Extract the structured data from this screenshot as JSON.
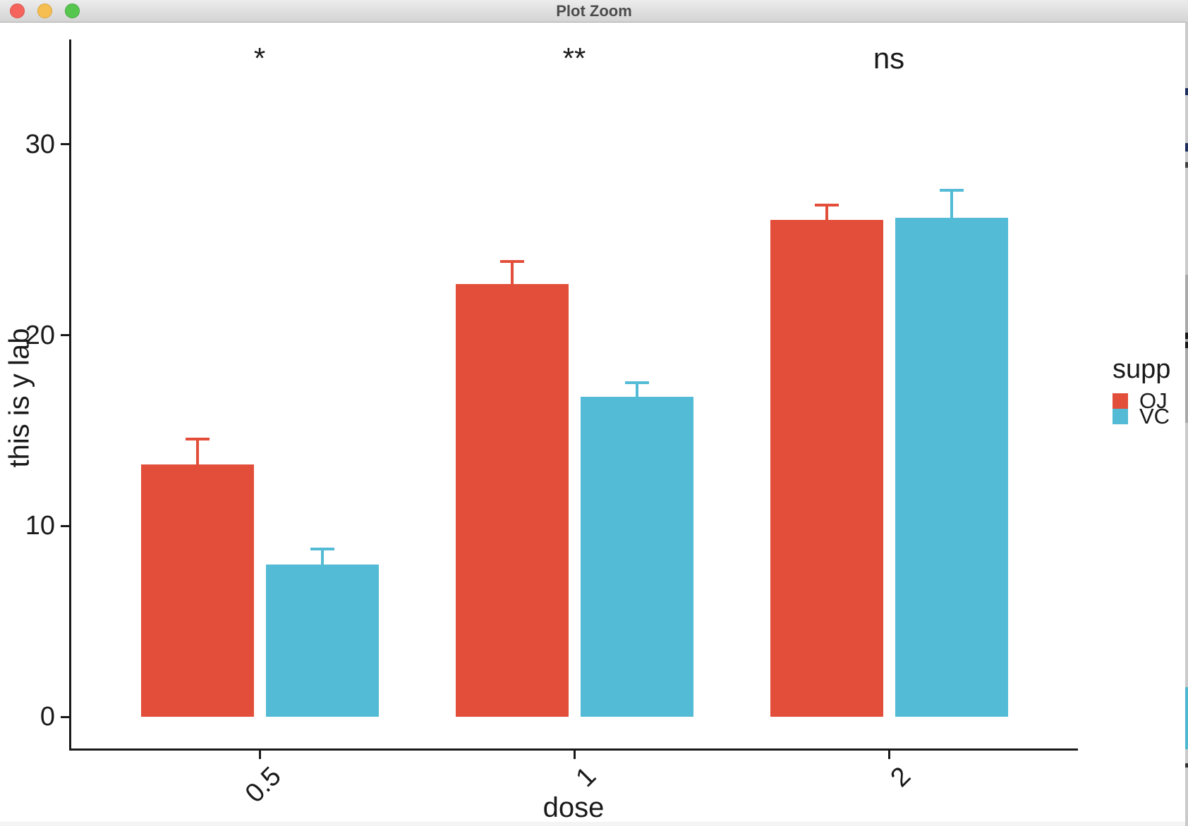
{
  "window": {
    "title": "Plot Zoom",
    "buttons": [
      "close",
      "minimize",
      "zoom"
    ]
  },
  "chart_data": {
    "type": "bar",
    "title": "",
    "xlabel": "dose",
    "ylabel": "this is y lab",
    "categories": [
      "0.5",
      "1",
      "2"
    ],
    "series": [
      {
        "name": "OJ",
        "color": "#e24e3a",
        "values": [
          13.23,
          22.7,
          26.06
        ],
        "sem_upper": [
          1.41,
          1.24,
          0.84
        ]
      },
      {
        "name": "VC",
        "color": "#53bbd5",
        "values": [
          7.98,
          16.77,
          26.14
        ],
        "sem_upper": [
          0.87,
          0.8,
          1.52
        ]
      }
    ],
    "error_bars": "upper whisker = mean + SEM, capped",
    "annotations": [
      {
        "category": "0.5",
        "label": "*"
      },
      {
        "category": "1",
        "label": "**"
      },
      {
        "category": "2",
        "label": "ns"
      }
    ],
    "y_ticks": [
      0,
      10,
      20,
      30
    ],
    "ylim": [
      0,
      35.5
    ],
    "grid": false,
    "axis_color": "#1a1a1a",
    "legend": {
      "title": "supp",
      "position": "right",
      "entries": [
        "OJ",
        "VC"
      ]
    }
  }
}
